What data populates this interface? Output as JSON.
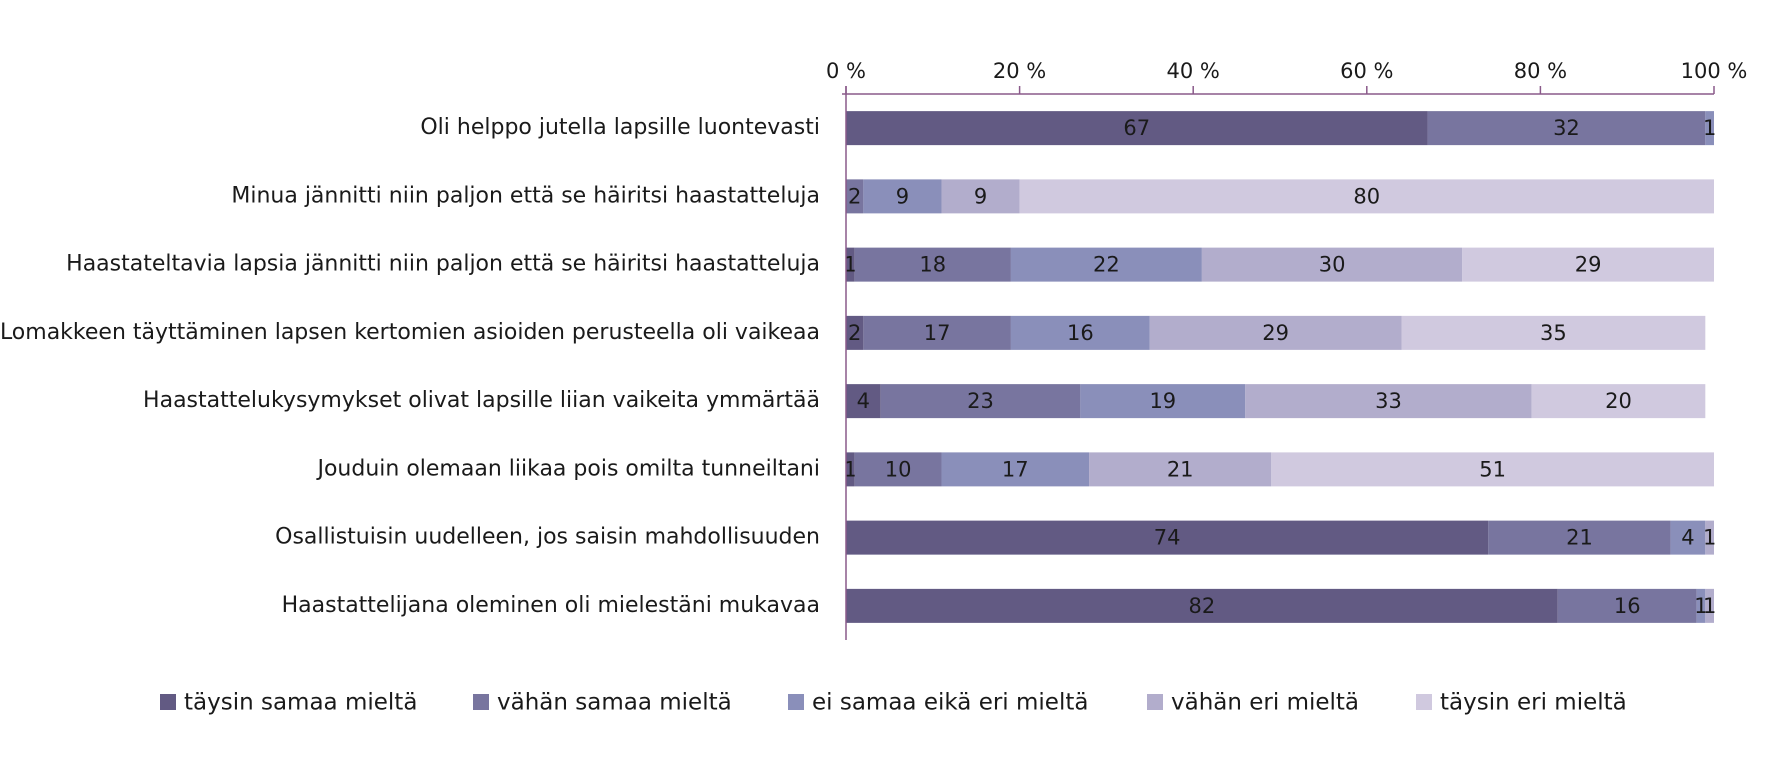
{
  "chart_data": {
    "type": "stacked-bar-horizontal",
    "categories": [
      "Oli helppo jutella lapsille luontevasti",
      "Minua jännitti niin paljon että se häiritsi haastatteluja",
      "Haastateltavia lapsia jännitti niin paljon että se häiritsi haastatteluja",
      "Lomakkeen täyttäminen lapsen kertomien asioiden perusteella oli vaikeaa",
      "Haastattelukysymykset olivat lapsille liian vaikeita ymmärtää",
      "Jouduin olemaan liikaa pois omilta tunneiltani",
      "Osallistuisin uudelleen, jos saisin mahdollisuuden",
      "Haastattelijana oleminen oli mielestäni mukavaa"
    ],
    "series": [
      {
        "name": "täysin samaa mieltä",
        "color": "#625a83",
        "values": [
          67,
          null,
          1,
          2,
          4,
          1,
          74,
          82
        ]
      },
      {
        "name": "vähän samaa mieltä",
        "color": "#78759f",
        "values": [
          32,
          2,
          18,
          17,
          23,
          10,
          21,
          16
        ]
      },
      {
        "name": "ei samaa eikä eri mieltä",
        "color": "#8a8fba",
        "values": [
          1,
          9,
          22,
          16,
          19,
          17,
          4,
          1
        ]
      },
      {
        "name": "vähän eri mieltä",
        "color": "#b2adcc",
        "values": [
          null,
          9,
          30,
          29,
          33,
          21,
          1,
          1
        ]
      },
      {
        "name": "täysin eri mieltä",
        "color": "#d0c9df",
        "values": [
          null,
          80,
          29,
          35,
          20,
          51,
          null,
          null
        ]
      }
    ],
    "xlim": [
      0,
      100
    ],
    "xticks": [
      {
        "value": 0,
        "label": "0 %"
      },
      {
        "value": 20,
        "label": "20 %"
      },
      {
        "value": 40,
        "label": "40 %"
      },
      {
        "value": 60,
        "label": "60 %"
      },
      {
        "value": 80,
        "label": "80 %"
      },
      {
        "value": 100,
        "label": "100 %"
      }
    ]
  }
}
